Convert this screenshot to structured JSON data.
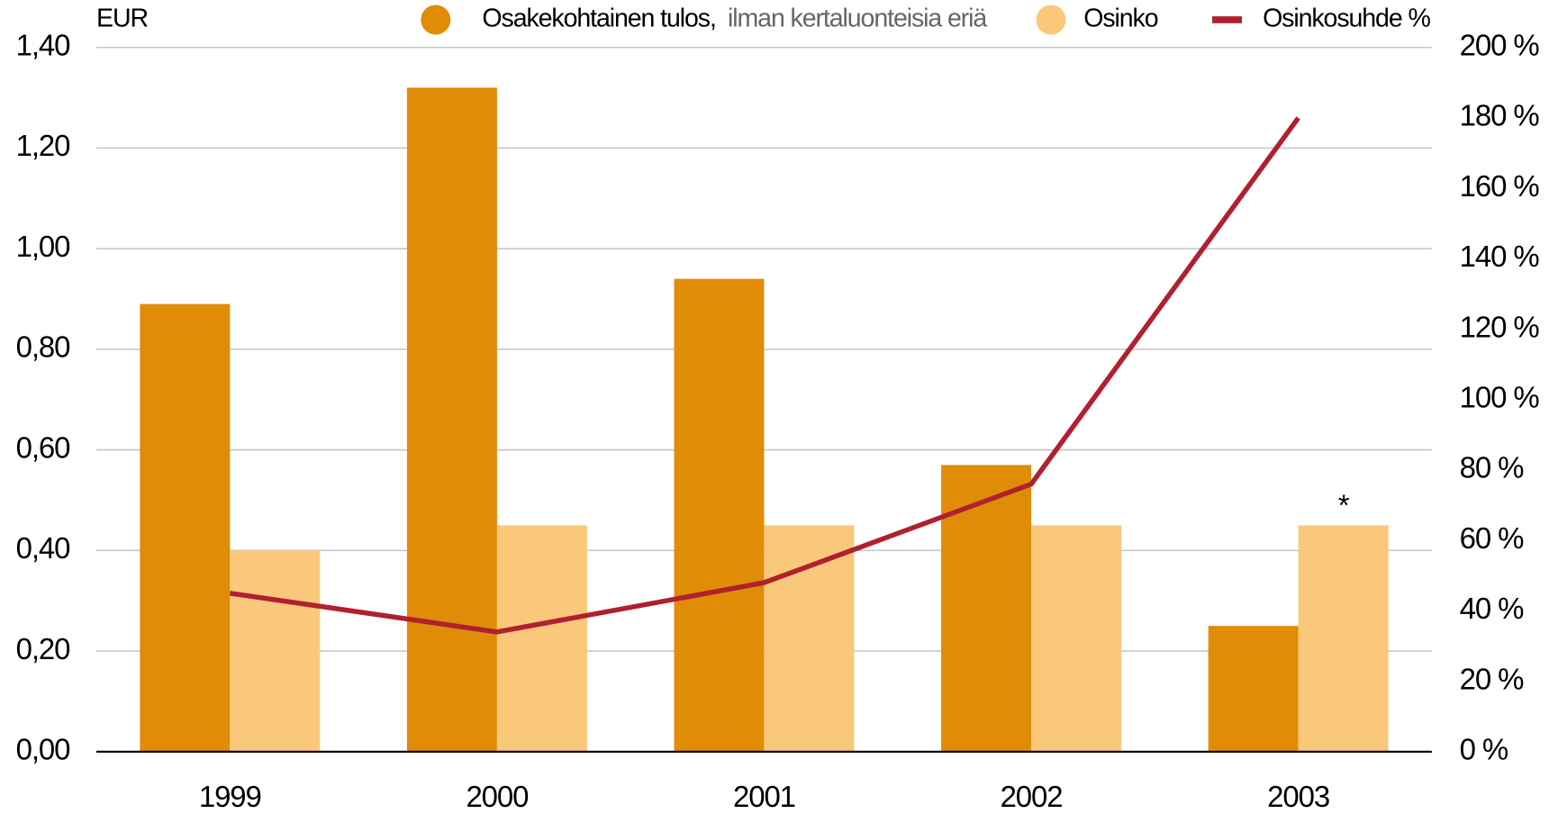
{
  "chart_data": {
    "type": "bar",
    "y_label": "EUR",
    "categories": [
      "1999",
      "2000",
      "2001",
      "2002",
      "2003"
    ],
    "series": [
      {
        "name": "Osakekohtainen tulos,",
        "color": "#e08c06",
        "values": [
          0.89,
          1.32,
          0.94,
          0.57,
          0.25
        ]
      },
      {
        "name": "Osinko",
        "color": "#f9c87a",
        "values": [
          0.4,
          0.45,
          0.45,
          0.45,
          0.45
        ]
      },
      {
        "name": "Osinkosuhde %",
        "color": "#b0202e",
        "type": "line",
        "axis": "y2",
        "values": [
          45,
          34,
          48,
          76,
          180
        ]
      }
    ],
    "legend_note": "ilman kertaluonteisia eriä",
    "annotation": "*",
    "annotation_series": 1,
    "annotation_index": 4,
    "ylim": [
      0,
      1.4
    ],
    "yticks": [
      {
        "value": 0,
        "label": "0,00"
      },
      {
        "value": 0.2,
        "label": "0,20"
      },
      {
        "value": 0.4,
        "label": "0,40"
      },
      {
        "value": 0.6,
        "label": "0,60"
      },
      {
        "value": 0.8,
        "label": "0,80"
      },
      {
        "value": 1.0,
        "label": "1,00"
      },
      {
        "value": 1.2,
        "label": "1,20"
      },
      {
        "value": 1.4,
        "label": "1,40"
      }
    ],
    "y2lim": [
      0,
      200
    ],
    "y2ticks": [
      {
        "value": 0,
        "label": "0 %"
      },
      {
        "value": 20,
        "label": "20 %"
      },
      {
        "value": 40,
        "label": "40 %"
      },
      {
        "value": 60,
        "label": "60 %"
      },
      {
        "value": 80,
        "label": "80 %"
      },
      {
        "value": 100,
        "label": "100 %"
      },
      {
        "value": 120,
        "label": "120 %"
      },
      {
        "value": 140,
        "label": "140 %"
      },
      {
        "value": 160,
        "label": "160 %"
      },
      {
        "value": 180,
        "label": "180 %"
      },
      {
        "value": 200,
        "label": "200 %"
      }
    ],
    "grid": true
  }
}
